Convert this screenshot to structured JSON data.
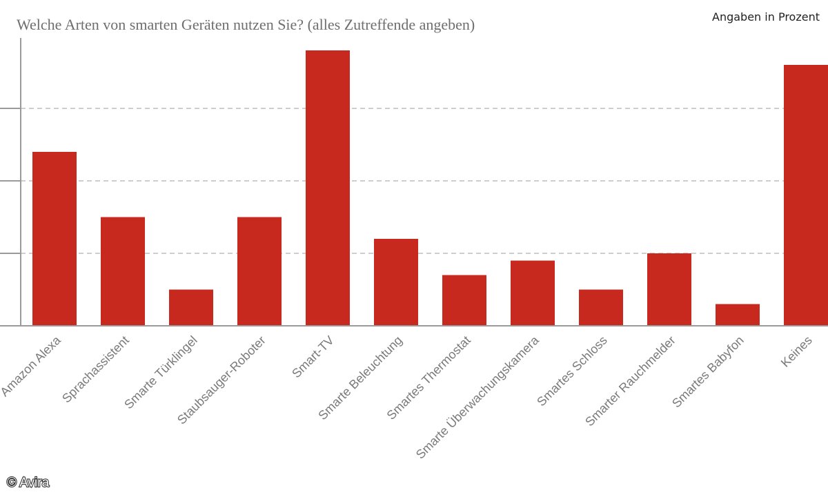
{
  "header": {
    "title": "Welche Arten von smarten Geräten nutzen Sie? (alles Zutreffende angeben)",
    "unit_note": "Angaben in Prozent"
  },
  "footer": {
    "credit": "© Avira"
  },
  "colors": {
    "bar": "#c8291f",
    "axis": "#9a9a9a",
    "grid": "#bdbdbd",
    "label": "#7a7a7a",
    "title": "#6e6e6e"
  },
  "chart_data": {
    "type": "bar",
    "title": "Welche Arten von smarten Geräten nutzen Sie? (alles Zutreffende angeben)",
    "categories": [
      "Amazon Alexa",
      "Sprachassistent",
      "Smarte Türklingel",
      "Staubsauger-Roboter",
      "Smart-TV",
      "Smarte Beleuchtung",
      "Smartes Thermostat",
      "Smarte Überwachungskamera",
      "Smartes Schloss",
      "Smarter Rauchmelder",
      "Smartes Babyfon",
      "Keines"
    ],
    "values": [
      24,
      15,
      5,
      15,
      38,
      12,
      7,
      9,
      5,
      10,
      3,
      36
    ],
    "ylim": [
      0,
      40
    ],
    "yticks": [
      0,
      10,
      20,
      30
    ],
    "grid": true,
    "legend": "none"
  }
}
